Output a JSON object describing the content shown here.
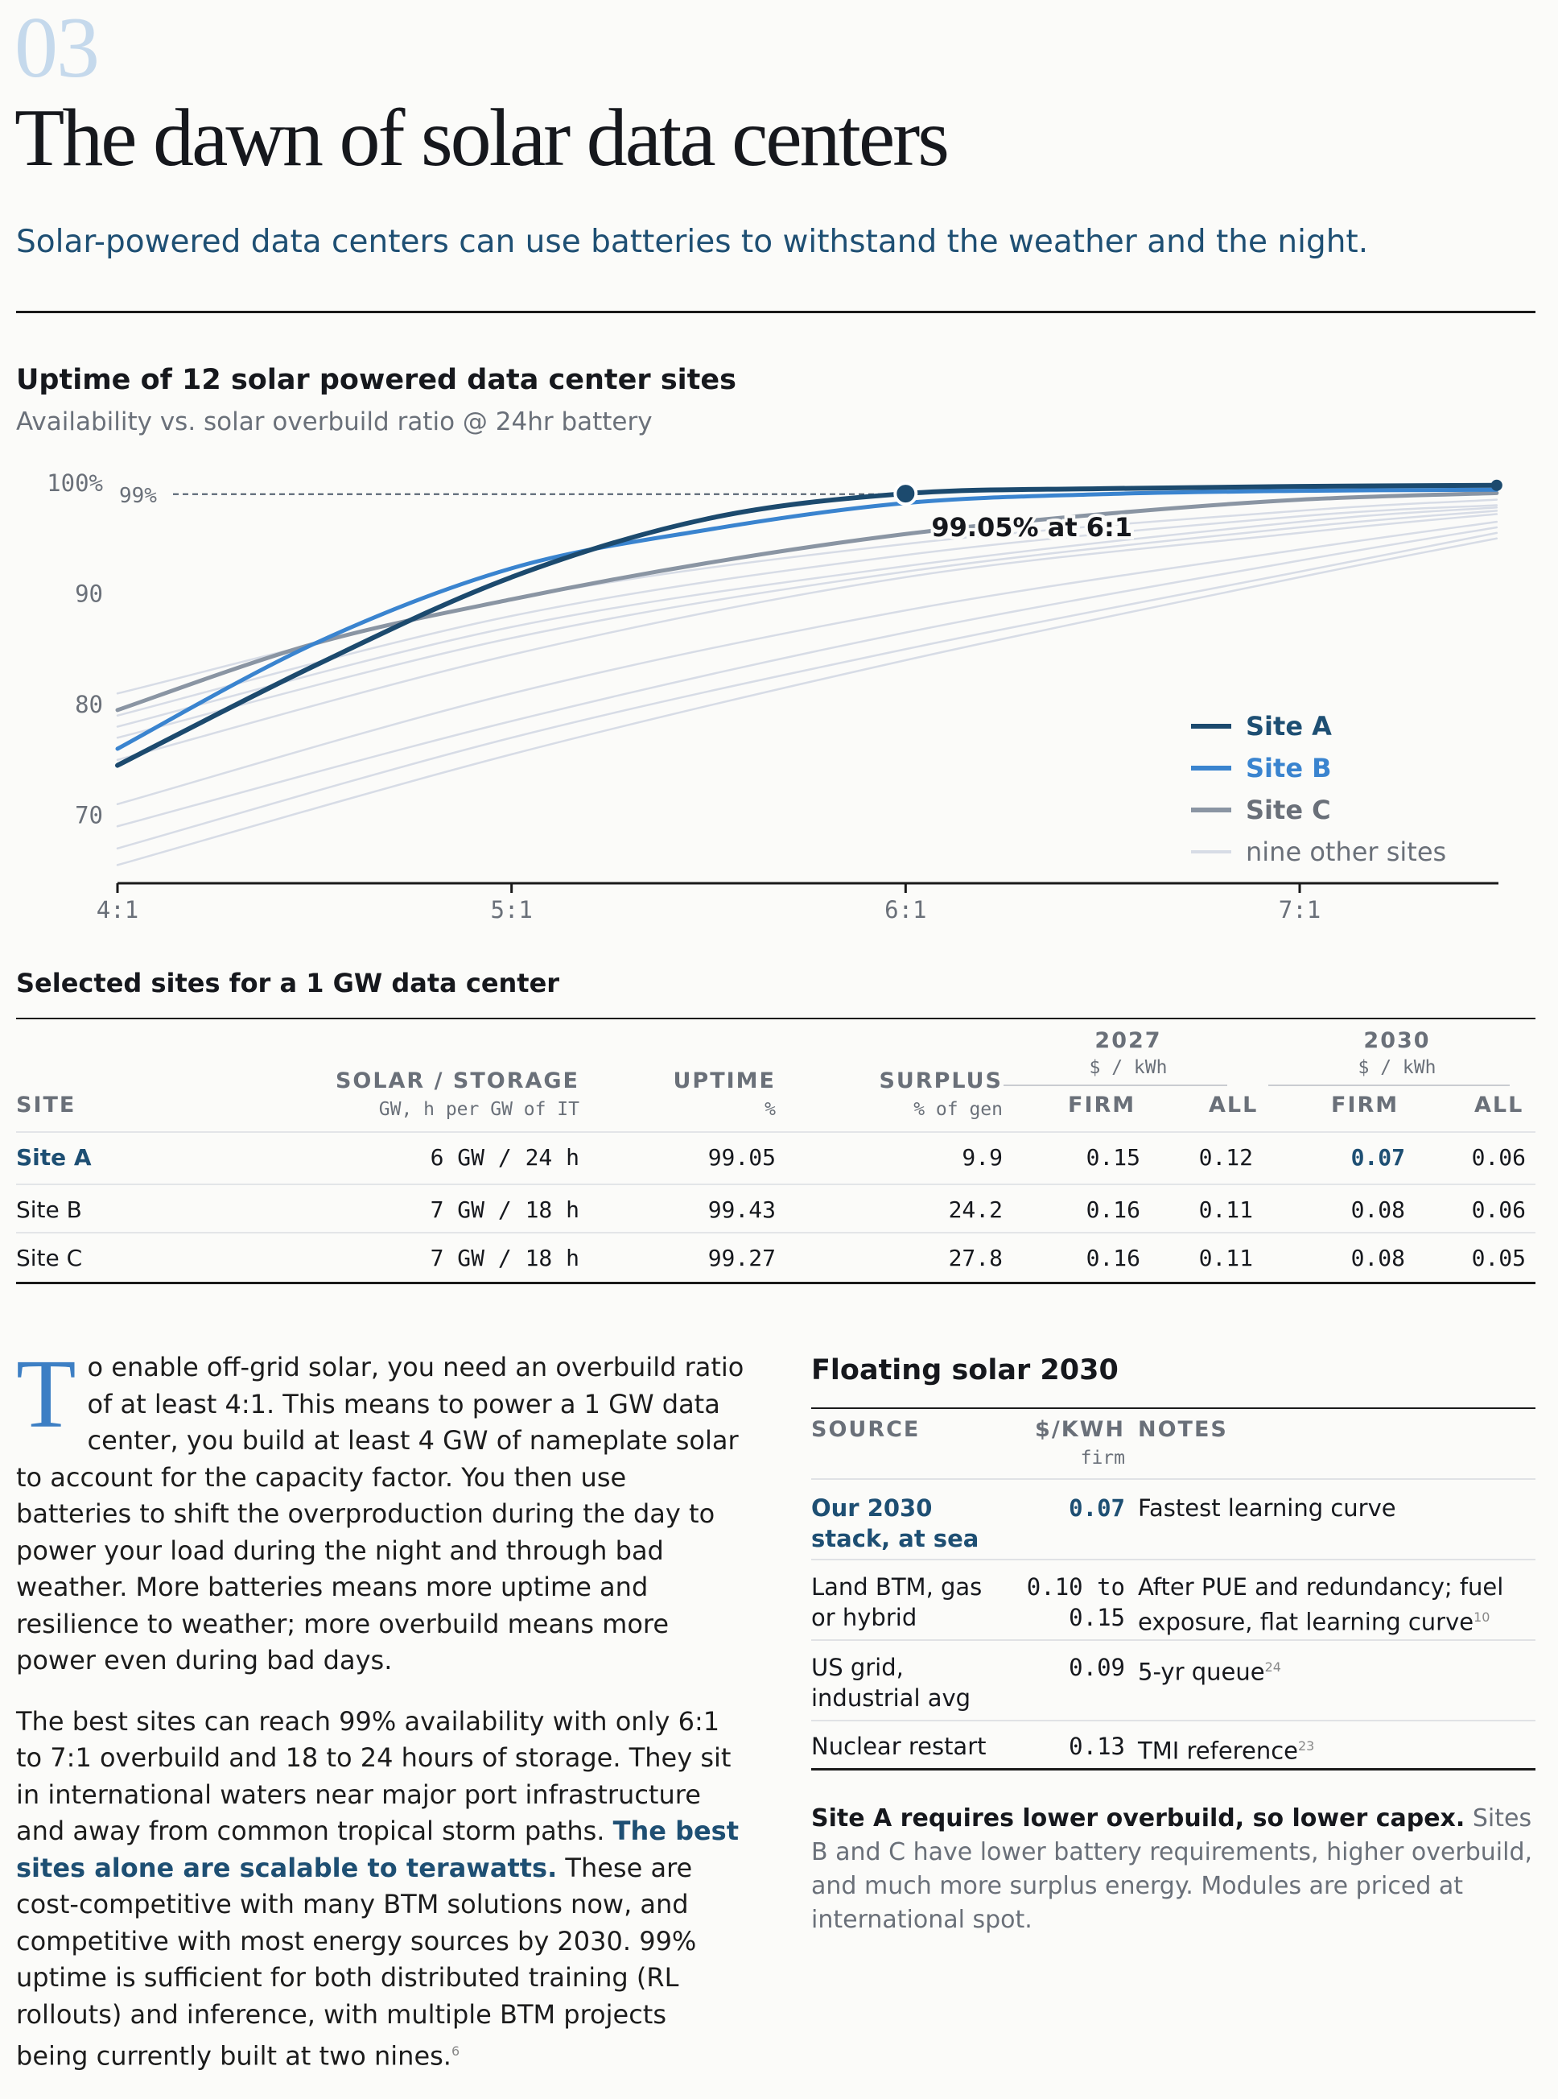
{
  "section_number": "03",
  "title": "The dawn of solar data centers",
  "lede": "Solar-powered data centers can use batteries to withstand the weather and the night.",
  "chart_data": {
    "type": "line",
    "title": "Uptime of 12 solar powered data center sites",
    "subtitle": "Availability vs. solar overbuild ratio @ 24hr battery",
    "x_ticks": [
      "4:1",
      "5:1",
      "6:1",
      "7:1"
    ],
    "x_values": [
      4,
      5,
      6,
      7
    ],
    "xlim": [
      4,
      7.5
    ],
    "y_ticks": [
      "100%",
      "90",
      "80",
      "70"
    ],
    "y_tick_values": [
      100,
      90,
      80,
      70
    ],
    "ylim": [
      64,
      100
    ],
    "reference_line": {
      "label": "99%",
      "y": 99
    },
    "annotation": {
      "label": "99.05% at 6:1",
      "x": 6,
      "y": 99.05
    },
    "colors": {
      "site_a": "#1c4a6e",
      "site_b": "#3a84cf",
      "site_c": "#8a95a3",
      "others": "#d7dce6"
    },
    "series": [
      {
        "name": "Site A",
        "key": "site_a",
        "x": [
          4,
          4.5,
          5,
          5.5,
          6,
          6.5,
          7,
          7.5
        ],
        "y": [
          74.5,
          83.5,
          91.5,
          96.8,
          99.05,
          99.5,
          99.7,
          99.8
        ]
      },
      {
        "name": "Site B",
        "key": "site_b",
        "x": [
          4,
          4.5,
          5,
          5.5,
          6,
          6.5,
          7,
          7.5
        ],
        "y": [
          76,
          85.5,
          92.3,
          95.8,
          98.2,
          99.0,
          99.3,
          99.4
        ]
      },
      {
        "name": "Site C",
        "key": "site_c",
        "x": [
          4,
          4.5,
          5,
          5.5,
          6,
          6.5,
          7,
          7.5
        ],
        "y": [
          79.5,
          85.5,
          89.5,
          92.8,
          95.4,
          97.2,
          98.5,
          99.1
        ]
      },
      {
        "key": "others",
        "x": [
          4,
          5,
          6,
          7,
          7.5
        ],
        "y": [
          81,
          89.5,
          94.5,
          97.5,
          98.5
        ]
      },
      {
        "key": "others",
        "x": [
          4,
          5,
          6,
          7,
          7.5
        ],
        "y": [
          79,
          88,
          93.5,
          97,
          98
        ]
      },
      {
        "key": "others",
        "x": [
          4,
          5,
          6,
          7,
          7.5
        ],
        "y": [
          78,
          87,
          92.5,
          96.5,
          97.8
        ]
      },
      {
        "key": "others",
        "x": [
          4,
          5,
          6,
          7,
          7.5
        ],
        "y": [
          77,
          86,
          92,
          96,
          97.5
        ]
      },
      {
        "key": "others",
        "x": [
          4,
          5,
          6,
          7,
          7.5
        ],
        "y": [
          75,
          84.5,
          91.5,
          95.5,
          97.2
        ]
      },
      {
        "key": "others",
        "x": [
          4,
          5,
          6,
          7,
          7.5
        ],
        "y": [
          71,
          81,
          88.5,
          94,
          96.5
        ]
      },
      {
        "key": "others",
        "x": [
          4,
          5,
          6,
          7,
          7.5
        ],
        "y": [
          69,
          78.5,
          86.5,
          93,
          96
        ]
      },
      {
        "key": "others",
        "x": [
          4,
          5,
          6,
          7,
          7.5
        ],
        "y": [
          67,
          77,
          85,
          92,
          95.5
        ]
      },
      {
        "key": "others",
        "x": [
          4,
          5,
          6,
          7,
          7.5
        ],
        "y": [
          65.5,
          75.5,
          84,
          91.5,
          95
        ]
      }
    ],
    "legend": {
      "placement": "bottom-right",
      "entries": [
        {
          "label": "Site A",
          "key": "site_a"
        },
        {
          "label": "Site B",
          "key": "site_b"
        },
        {
          "label": "Site C",
          "key": "site_c"
        },
        {
          "label": "nine other sites",
          "key": "others"
        }
      ]
    }
  },
  "sites_table": {
    "title": "Selected sites for a 1 GW data center",
    "headers": {
      "site": "SITE",
      "solar_storage": "SOLAR / STORAGE",
      "solar_storage_unit": "GW, h per GW of IT",
      "uptime": "UPTIME",
      "uptime_unit": "%",
      "surplus": "SURPLUS",
      "surplus_unit": "% of gen",
      "year_2027": "2027",
      "year_2030": "2030",
      "cost_unit": "$ / kWh",
      "firm": "FIRM",
      "all": "ALL"
    },
    "rows": [
      {
        "site": "Site A",
        "solar_storage": "6 GW / 24 h",
        "uptime": "99.05",
        "surplus": "9.9",
        "firm_2027": "0.15",
        "all_2027": "0.12",
        "firm_2030": "0.07",
        "all_2030": "0.06"
      },
      {
        "site": "Site B",
        "solar_storage": "7 GW / 18 h",
        "uptime": "99.43",
        "surplus": "24.2",
        "firm_2027": "0.16",
        "all_2027": "0.11",
        "firm_2030": "0.08",
        "all_2030": "0.06"
      },
      {
        "site": "Site C",
        "solar_storage": "7 GW / 18 h",
        "uptime": "99.27",
        "surplus": "27.8",
        "firm_2027": "0.16",
        "all_2027": "0.11",
        "firm_2030": "0.08",
        "all_2030": "0.05"
      }
    ]
  },
  "body": {
    "dropcap": "T",
    "p1": "o enable off-grid solar, you need an overbuild ratio of at least 4:1. This means to power a 1 GW data center, you build at least 4 GW of nameplate solar to account for the capacity factor. You then use batteries to shift the overproduction during the day to power your load during the night and through bad weather. More batteries means more uptime and resilience to weather; more overbuild means more power even during bad days.",
    "p2_a": "The best sites can reach 99% availability with only 6:1 to 7:1 overbuild and 18 to 24 hours of storage. They sit in international waters near major port infrastructure and away from common tropical storm paths. ",
    "p2_em": "The best sites alone are scalable to terawatts.",
    "p2_b": " These are cost-competitive with many BTM solutions now, and competitive with most energy sources by 2030. 99% uptime is sufficient for both distributed training (RL rollouts) and inference, with multiple BTM projects being currently built at two nines.",
    "p2_ref": "6"
  },
  "floating_table": {
    "title": "Floating solar 2030",
    "headers": {
      "source": "SOURCE",
      "cost": "$/KWH",
      "cost_sub": "firm",
      "notes": "NOTES"
    },
    "rows": [
      {
        "source": "Our 2030 stack, at sea",
        "cost": "0.07",
        "notes": "Fastest learning curve",
        "ref": ""
      },
      {
        "source": "Land BTM, gas or hybrid",
        "cost": "0.10 to 0.15",
        "notes": "After PUE and redundancy; fuel exposure, flat learning curve",
        "ref": "10"
      },
      {
        "source": "US grid, industrial avg",
        "cost": "0.09",
        "notes": "5-yr queue",
        "ref": "24"
      },
      {
        "source": "Nuclear restart",
        "cost": "0.13",
        "notes": "TMI reference",
        "ref": "23"
      }
    ],
    "note_bold": "Site A requires lower overbuild, so lower capex.",
    "note_rest": " Sites B and C have lower battery requirements, higher overbuild, and much more surplus energy. Modules are priced at international spot."
  }
}
